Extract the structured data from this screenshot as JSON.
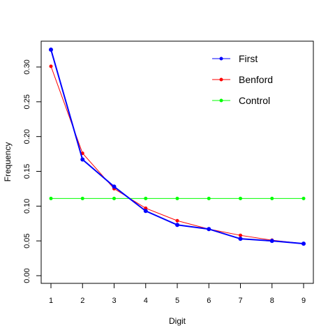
{
  "chart_data": {
    "type": "line",
    "title": "",
    "xlabel": "Digit",
    "ylabel": "Frequency",
    "x": [
      1,
      2,
      3,
      4,
      5,
      6,
      7,
      8,
      9
    ],
    "xlim": [
      1,
      9
    ],
    "ylim": [
      -0.01,
      0.335
    ],
    "xticks": [
      "1",
      "2",
      "3",
      "4",
      "5",
      "6",
      "7",
      "8",
      "9"
    ],
    "yticks": [
      "0.00",
      "0.05",
      "0.10",
      "0.15",
      "0.20",
      "0.25",
      "0.30"
    ],
    "grid": false,
    "legend_position": "top-right",
    "series": [
      {
        "name": "First",
        "color": "#0000ff",
        "values": [
          0.325,
          0.167,
          0.128,
          0.093,
          0.073,
          0.067,
          0.053,
          0.05,
          0.046
        ]
      },
      {
        "name": "Benford",
        "color": "#ff0000",
        "values": [
          0.301,
          0.176,
          0.125,
          0.097,
          0.079,
          0.067,
          0.058,
          0.051,
          0.046
        ]
      },
      {
        "name": "Control",
        "color": "#00ff00",
        "values": [
          0.111,
          0.111,
          0.111,
          0.111,
          0.111,
          0.111,
          0.111,
          0.111,
          0.111
        ]
      }
    ]
  }
}
